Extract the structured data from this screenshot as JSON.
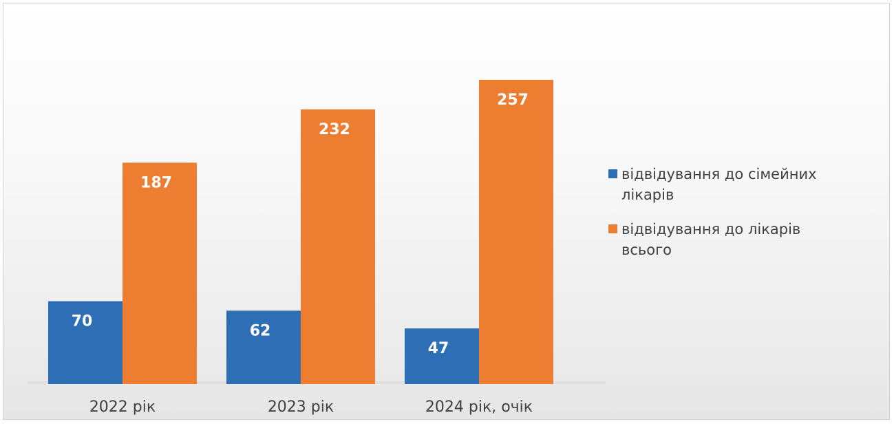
{
  "chart_data": {
    "type": "bar",
    "categories": [
      "2022 рік",
      "2023 рік",
      "2024 рік, очік"
    ],
    "series": [
      {
        "name": "відвідування до сімейних лікарів",
        "values": [
          70,
          62,
          47
        ],
        "color": "#2e6eb5"
      },
      {
        "name": "відвідування до лікарів всього",
        "values": [
          187,
          232,
          257
        ],
        "color": "#ed7d31"
      }
    ],
    "legend_position": "right",
    "grid": false,
    "ylim": [
      0,
      300
    ]
  }
}
